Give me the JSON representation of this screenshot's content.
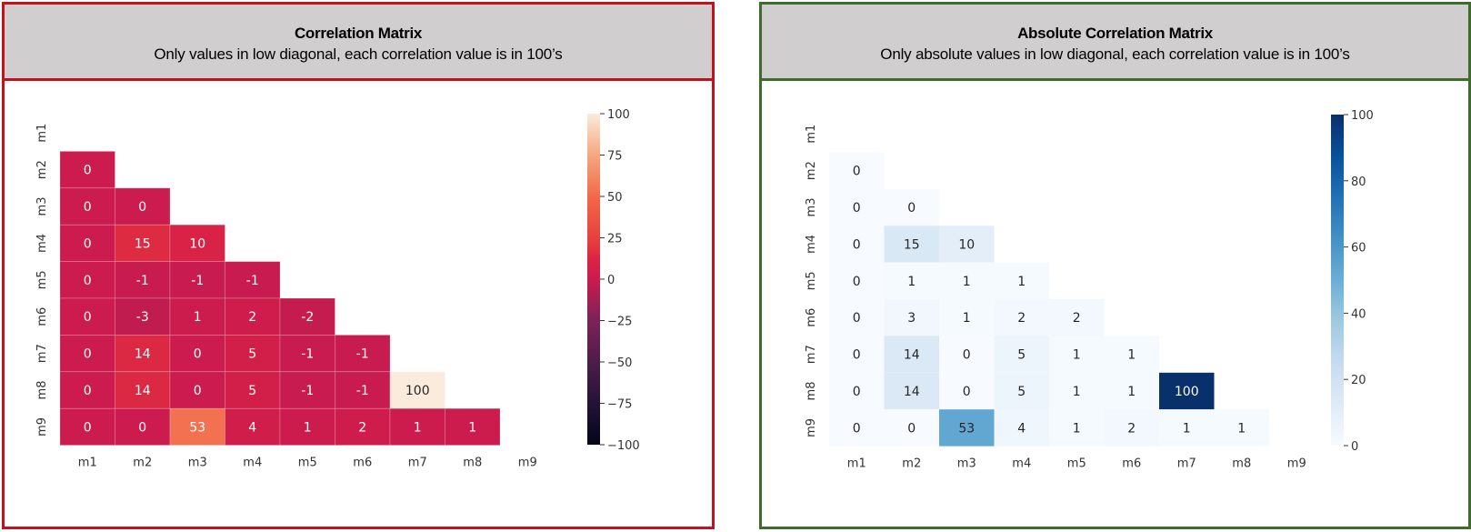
{
  "chart_data": [
    {
      "type": "heatmap",
      "title": "Correlation Matrix",
      "subtitle": "Only values in low diagonal, each correlation value is in 100’s",
      "x_labels": [
        "m1",
        "m2",
        "m3",
        "m4",
        "m5",
        "m6",
        "m7",
        "m8",
        "m9"
      ],
      "y_labels": [
        "m1",
        "m2",
        "m3",
        "m4",
        "m5",
        "m6",
        "m7",
        "m8",
        "m9"
      ],
      "mask": "upper-triangle-including-diagonal",
      "rows": [
        [],
        [
          0
        ],
        [
          0,
          0
        ],
        [
          0,
          15,
          10
        ],
        [
          0,
          -1,
          -1,
          -1
        ],
        [
          0,
          -3,
          1,
          2,
          -2
        ],
        [
          0,
          14,
          0,
          5,
          -1,
          -1
        ],
        [
          0,
          14,
          0,
          5,
          -1,
          -1,
          100
        ],
        [
          0,
          0,
          53,
          4,
          1,
          2,
          1,
          1
        ]
      ],
      "colorbar": {
        "min": -100,
        "max": 100,
        "ticks": [
          100,
          75,
          50,
          25,
          0,
          -25,
          -50,
          -75,
          -100
        ],
        "colormap": "rocket"
      },
      "border_color": "#c1121f"
    },
    {
      "type": "heatmap",
      "title": "Absolute Correlation Matrix",
      "subtitle": "Only absolute values in low diagonal, each correlation value is in 100’s",
      "x_labels": [
        "m1",
        "m2",
        "m3",
        "m4",
        "m5",
        "m6",
        "m7",
        "m8",
        "m9"
      ],
      "y_labels": [
        "m1",
        "m2",
        "m3",
        "m4",
        "m5",
        "m6",
        "m7",
        "m8",
        "m9"
      ],
      "mask": "upper-triangle-including-diagonal",
      "rows": [
        [],
        [
          0
        ],
        [
          0,
          0
        ],
        [
          0,
          15,
          10
        ],
        [
          0,
          1,
          1,
          1
        ],
        [
          0,
          3,
          1,
          2,
          2
        ],
        [
          0,
          14,
          0,
          5,
          1,
          1
        ],
        [
          0,
          14,
          0,
          5,
          1,
          1,
          100
        ],
        [
          0,
          0,
          53,
          4,
          1,
          2,
          1,
          1
        ]
      ],
      "colorbar": {
        "min": 0,
        "max": 100,
        "ticks": [
          100,
          80,
          60,
          40,
          20,
          0
        ],
        "colormap": "Blues"
      },
      "border_color": "#3f6b2d"
    }
  ]
}
